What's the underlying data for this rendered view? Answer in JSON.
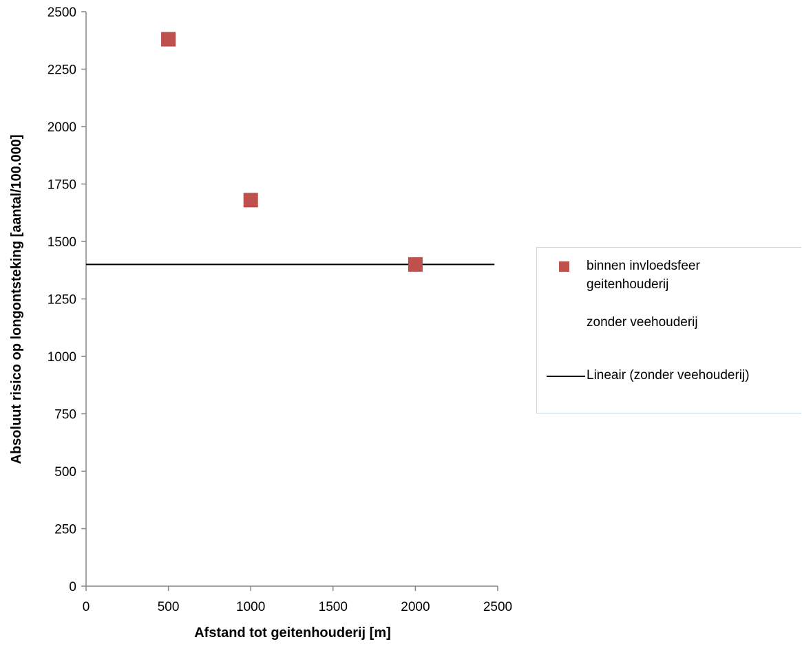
{
  "chart_data": {
    "type": "scatter",
    "xlabel": "Afstand tot geitenhouderij [m]",
    "ylabel": "Absoluut risico op longontsteking [aantal/100.000]",
    "xlim": [
      0,
      2500
    ],
    "ylim": [
      0,
      2500
    ],
    "x_ticks": [
      "0",
      "500",
      "1000",
      "1500",
      "2000",
      "2500"
    ],
    "y_ticks": [
      "0",
      "250",
      "500",
      "750",
      "1000",
      "1250",
      "1500",
      "1750",
      "2000",
      "2250",
      "2500"
    ],
    "x_tick_values": [
      0,
      500,
      1000,
      1500,
      2000,
      2500
    ],
    "y_tick_values": [
      0,
      250,
      500,
      750,
      1000,
      1250,
      1500,
      1750,
      2000,
      2250,
      2500
    ],
    "series": [
      {
        "name": "binnen invloedsfeer geitenhouderij",
        "marker": "square",
        "color": "#c0504d",
        "points": [
          {
            "x": 500,
            "y": 2380
          },
          {
            "x": 1000,
            "y": 1680
          },
          {
            "x": 2000,
            "y": 1400
          }
        ]
      },
      {
        "name": "zonder veehouderij",
        "marker": "none",
        "points": []
      },
      {
        "name": "Lineair (zonder veehouderij)",
        "type": "trendline",
        "color": "#000000",
        "x_range": [
          0,
          2480
        ],
        "y": 1400
      }
    ],
    "legend_position": "right",
    "grid": false
  }
}
